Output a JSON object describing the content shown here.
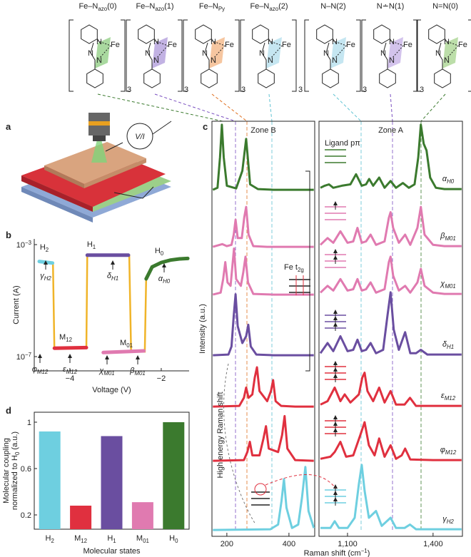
{
  "panel_labels": {
    "a": "a",
    "b": "b",
    "c": "c",
    "d": "d"
  },
  "molecules": [
    "Fe–Nazo(0)",
    "Fe–Nazo(1)",
    "Fe–NPy",
    "Fe–Nazo(2)",
    "N–N(2)",
    "N∸N(1)",
    "N=N(0)"
  ],
  "atoms": {
    "fe": "Fe",
    "n": "N",
    "count": 3
  },
  "panel_a": {
    "meter": "V/I"
  },
  "chart_data": [
    {
      "type": "line",
      "xlabel": "Voltage (V)",
      "ylabel": "Current (A)",
      "xlim": [
        -4.78,
        -1.39
      ],
      "xticks": [
        {
          "value": -4,
          "label": "−4"
        },
        {
          "value": -2,
          "label": "−2"
        }
      ],
      "ylim": [
        3.1e-08,
        0.0016
      ],
      "yticks": [
        {
          "value": 1e-07,
          "label": "10−7"
        },
        {
          "value": 0.001,
          "label": "10−3"
        }
      ],
      "log_y": true,
      "series": [
        {
          "color": "#f0b429",
          "x": [
            -4.37,
            -4.34,
            -3.64,
            -3.62,
            -2.7,
            -2.66,
            -2.36,
            -2.33
          ],
          "values": [
            0.00022,
            2e-07,
            2e-07,
            0.00042,
            0.00042,
            1.5e-07,
            1.5e-07,
            6e-05
          ]
        },
        {
          "color": "#6ecfe0",
          "x": [
            -4.67,
            -4.38
          ],
          "values": [
            0.00025,
            0.00022
          ]
        },
        {
          "color": "#e0303f",
          "x": [
            -4.34,
            -3.64
          ],
          "values": [
            2e-07,
            2.1e-07
          ]
        },
        {
          "color": "#6a4ea0",
          "x": [
            -3.62,
            -2.72
          ],
          "values": [
            0.00042,
            0.00042
          ]
        },
        {
          "color": "#e07ab0",
          "x": [
            -3.27,
            -2.38
          ],
          "values": [
            1.4e-07,
            1.6e-07
          ]
        },
        {
          "color": "#3b7a2e",
          "x": [
            -2.33,
            -2.2,
            -2.0,
            -1.8,
            -1.6,
            -1.42
          ],
          "values": [
            6e-05,
            0.00016,
            0.00023,
            0.00028,
            0.00031,
            0.00032
          ]
        }
      ],
      "annotations": [
        "H2",
        "M12",
        "H1",
        "M01",
        "H0",
        "γH2",
        "φM12",
        "εM12",
        "χM01",
        "βM01",
        "δH1",
        "αH0"
      ]
    },
    {
      "type": "line",
      "title": "Zone B",
      "ylabel": "Intensity (a.u.)",
      "xlim": [
        152,
        483
      ],
      "xticks": [
        200,
        400
      ],
      "series": [
        {
          "color": "#3b7a2e",
          "x": [
            155,
            170,
            178,
            184,
            190,
            200,
            230,
            250,
            262,
            275,
            300,
            350,
            400,
            450,
            480
          ],
          "values": [
            0.02,
            0.05,
            0.5,
            0.98,
            0.5,
            0.08,
            0.04,
            0.3,
            0.77,
            0.1,
            0.03,
            0.02,
            0.02,
            0.02,
            0.02
          ]
        },
        {
          "color": "#e07ab0",
          "x": [
            155,
            185,
            200,
            215,
            222,
            228,
            235,
            248,
            256,
            262,
            270,
            285,
            330,
            400,
            480
          ],
          "values": [
            0.02,
            0.06,
            0.03,
            0.05,
            0.2,
            0.42,
            0.15,
            0.15,
            0.45,
            0.61,
            0.2,
            0.03,
            0.02,
            0.02,
            0.02
          ]
        },
        {
          "color": "#e07ab0",
          "x": [
            155,
            180,
            188,
            195,
            202,
            212,
            218,
            223,
            230,
            245,
            253,
            260,
            268,
            285,
            350,
            480
          ],
          "values": [
            0.02,
            0.05,
            0.25,
            0.5,
            0.2,
            0.15,
            0.45,
            0.7,
            0.25,
            0.15,
            0.35,
            0.58,
            0.2,
            0.03,
            0.02,
            0.02
          ]
        },
        {
          "color": "#6a4ea0",
          "x": [
            155,
            205,
            215,
            222,
            228,
            235,
            250,
            262,
            269,
            277,
            295,
            350,
            480
          ],
          "values": [
            0.02,
            0.03,
            0.15,
            0.6,
            0.92,
            0.45,
            0.2,
            0.3,
            0.47,
            0.15,
            0.03,
            0.02,
            0.02
          ]
        },
        {
          "color": "#e0303f",
          "x": [
            155,
            240,
            255,
            262,
            270,
            282,
            290,
            297,
            305,
            330,
            342,
            349,
            357,
            375,
            420,
            480
          ],
          "values": [
            0.02,
            0.03,
            0.15,
            0.3,
            0.15,
            0.2,
            0.45,
            0.6,
            0.25,
            0.1,
            0.25,
            0.41,
            0.1,
            0.03,
            0.02,
            0.02
          ]
        },
        {
          "color": "#e0303f",
          "x": [
            155,
            255,
            266,
            274,
            282,
            305,
            318,
            326,
            335,
            365,
            378,
            386,
            395,
            420,
            480
          ],
          "values": [
            0.02,
            0.03,
            0.15,
            0.3,
            0.1,
            0.1,
            0.35,
            0.53,
            0.2,
            0.15,
            0.4,
            0.68,
            0.2,
            0.03,
            0.02
          ]
        },
        {
          "color": "#6ecfe0",
          "x": [
            155,
            340,
            365,
            376,
            384,
            392,
            410,
            430,
            442,
            453,
            463,
            480
          ],
          "values": [
            0.02,
            0.03,
            0.1,
            0.45,
            0.77,
            0.35,
            0.05,
            0.1,
            0.5,
            0.95,
            0.3,
            0.05
          ]
        }
      ],
      "annotations": [
        "Fe t2g",
        "High energy Raman shift"
      ]
    },
    {
      "type": "line",
      "title": "Zone A",
      "xlabel": "Raman shift (cm−1)",
      "xlim": [
        1000,
        1503
      ],
      "xticks": [
        {
          "value": 1100,
          "label": "1,100"
        },
        {
          "value": 1400,
          "label": "1,400"
        }
      ],
      "series": [
        {
          "name": "αH0",
          "color": "#3b7a2e",
          "x": [
            1005,
            1020,
            1035,
            1050,
            1080,
            1110,
            1130,
            1150,
            1165,
            1176,
            1190,
            1211,
            1230,
            1251,
            1270,
            1294,
            1315,
            1335,
            1348,
            1357,
            1367,
            1377,
            1390,
            1410,
            1440,
            1470,
            1500
          ],
          "values": [
            0.05,
            0.08,
            0.1,
            0.05,
            0.08,
            0.1,
            0.25,
            0.08,
            0.1,
            0.18,
            0.08,
            0.2,
            0.05,
            0.15,
            0.05,
            0.12,
            0.05,
            0.1,
            0.5,
            0.98,
            0.7,
            0.6,
            0.2,
            0.05,
            0.03,
            0.03,
            0.03
          ]
        },
        {
          "name": "βM01",
          "color": "#e07ab0",
          "x": [
            1005,
            1030,
            1050,
            1075,
            1100,
            1120,
            1135,
            1150,
            1165,
            1181,
            1200,
            1230,
            1245,
            1251,
            1260,
            1280,
            1302,
            1320,
            1345,
            1357,
            1370,
            1400,
            1440,
            1500
          ],
          "values": [
            0.05,
            0.15,
            0.08,
            0.25,
            0.08,
            0.1,
            0.3,
            0.08,
            0.1,
            0.2,
            0.05,
            0.1,
            0.45,
            0.53,
            0.3,
            0.08,
            0.2,
            0.05,
            0.3,
            0.61,
            0.2,
            0.05,
            0.03,
            0.03
          ]
        },
        {
          "name": "χM01",
          "color": "#e07ab0",
          "x": [
            1005,
            1030,
            1050,
            1075,
            1100,
            1120,
            1135,
            1150,
            1165,
            1181,
            1200,
            1230,
            1245,
            1251,
            1260,
            1280,
            1302,
            1320,
            1345,
            1357,
            1370,
            1400,
            1440,
            1500
          ],
          "values": [
            0.05,
            0.15,
            0.08,
            0.25,
            0.08,
            0.1,
            0.25,
            0.08,
            0.1,
            0.2,
            0.05,
            0.1,
            0.5,
            0.58,
            0.3,
            0.08,
            0.15,
            0.05,
            0.2,
            0.4,
            0.15,
            0.05,
            0.03,
            0.03
          ]
        },
        {
          "name": "δH1",
          "color": "#6a4ea0",
          "x": [
            1005,
            1030,
            1050,
            1075,
            1100,
            1120,
            1135,
            1150,
            1165,
            1181,
            1200,
            1225,
            1240,
            1251,
            1262,
            1280,
            1302,
            1320,
            1340,
            1357,
            1380,
            1440,
            1500
          ],
          "values": [
            0.05,
            0.2,
            0.08,
            0.3,
            0.08,
            0.1,
            0.25,
            0.08,
            0.1,
            0.2,
            0.05,
            0.1,
            0.6,
            0.95,
            0.4,
            0.1,
            0.36,
            0.05,
            0.05,
            0.1,
            0.03,
            0.03,
            0.03
          ]
        },
        {
          "name": "εM12",
          "color": "#e0303f",
          "x": [
            1005,
            1030,
            1055,
            1075,
            1090,
            1110,
            1140,
            1152,
            1160,
            1170,
            1190,
            1211,
            1230,
            1251,
            1270,
            1300,
            1319,
            1340,
            1400,
            1500
          ],
          "values": [
            0.05,
            0.1,
            0.3,
            0.1,
            0.2,
            0.08,
            0.2,
            0.45,
            0.52,
            0.25,
            0.1,
            0.3,
            0.08,
            0.25,
            0.05,
            0.05,
            0.15,
            0.03,
            0.03,
            0.03
          ]
        },
        {
          "name": "φM12",
          "color": "#e0303f",
          "x": [
            1005,
            1040,
            1055,
            1075,
            1095,
            1120,
            1145,
            1160,
            1175,
            1195,
            1211,
            1230,
            1251,
            1270,
            1290,
            1302,
            1320,
            1400,
            1500
          ],
          "values": [
            0.05,
            0.08,
            0.15,
            0.3,
            0.08,
            0.1,
            0.4,
            0.59,
            0.25,
            0.1,
            0.35,
            0.08,
            0.25,
            0.05,
            0.1,
            0.2,
            0.04,
            0.03,
            0.03
          ]
        },
        {
          "name": "γH2",
          "color": "#6ecfe0",
          "x": [
            1005,
            1040,
            1055,
            1070,
            1100,
            1125,
            1140,
            1150,
            1160,
            1175,
            1200,
            1220,
            1251,
            1270,
            1300,
            1319,
            1340,
            1400,
            1500
          ],
          "values": [
            0.05,
            0.05,
            0.15,
            0.05,
            0.05,
            0.2,
            0.7,
            0.98,
            0.6,
            0.2,
            0.3,
            0.08,
            0.2,
            0.05,
            0.05,
            0.1,
            0.03,
            0.03,
            0.03
          ]
        }
      ],
      "annotations": [
        "Ligand pπ"
      ]
    },
    {
      "type": "bar",
      "xlabel": "Molecular states",
      "ylabel": [
        "Molecular coupling",
        "normalized to H0 (a.u.)"
      ],
      "categories": [
        "H2",
        "M12",
        "H1",
        "M01",
        "H0"
      ],
      "values": [
        0.92,
        0.28,
        0.88,
        0.31,
        1
      ],
      "colors": [
        "#6ecfe0",
        "#e0303f",
        "#6a4ea0",
        "#e07ab0",
        "#3b7a2e"
      ],
      "ylim": [
        0.077,
        1.086
      ],
      "yticks": [
        0.2,
        0.6,
        1
      ]
    }
  ]
}
